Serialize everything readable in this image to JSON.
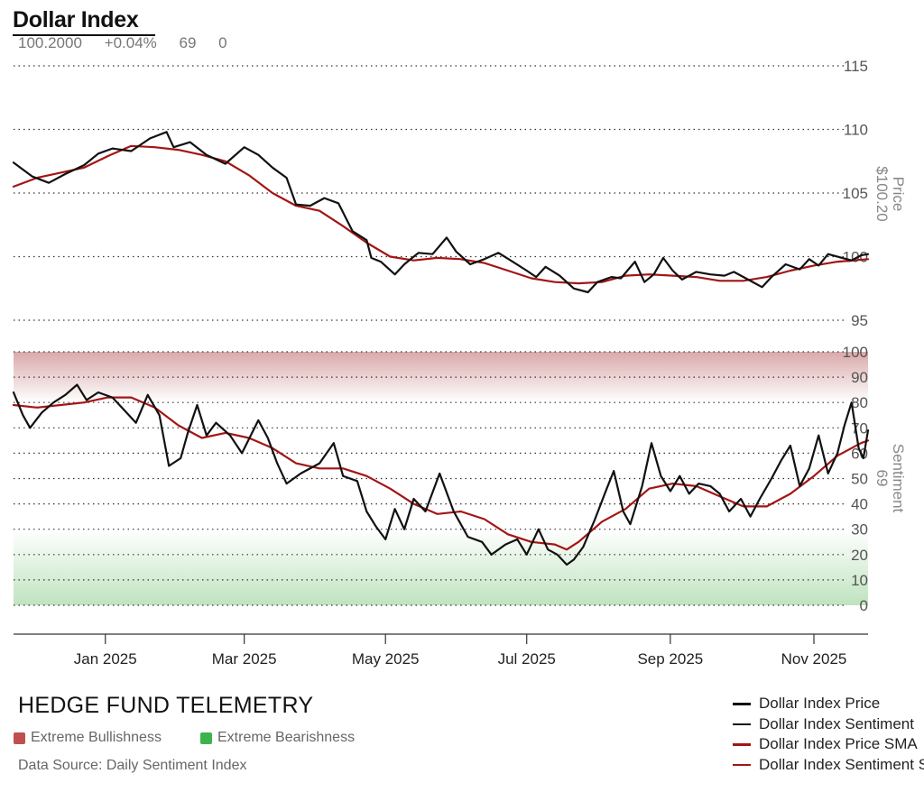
{
  "header": {
    "title": "Dollar Index",
    "stats": [
      "100.2000",
      "+0.04%",
      "69",
      "0"
    ]
  },
  "footer": {
    "brand": "HEDGE FUND TELEMETRY",
    "zones": [
      {
        "label": "Extreme Bullishness",
        "color": "#c0504d"
      },
      {
        "label": "Extreme Bearishness",
        "color": "#3cb44b"
      }
    ],
    "source": "Data Source: Daily Sentiment Index"
  },
  "colors": {
    "price": "#111111",
    "sma": "#a31515",
    "bull_zone": "#d9a9aa",
    "bear_zone": "#bfe3bf"
  },
  "chart_data": {
    "type": "line",
    "x_tick_labels": [
      "Jan 2025",
      "Mar 2025",
      "May 2025",
      "Jul 2025",
      "Sep 2025",
      "Nov 2025"
    ],
    "legend": [
      "Dollar Index Price",
      "Dollar Index Sentiment",
      "Dollar Index Price SMA",
      "Dollar Index Sentiment SMA"
    ],
    "price_panel": {
      "ylabel": [
        "Price",
        "$100.20"
      ],
      "ylim": [
        95,
        115
      ],
      "yticks": [
        95,
        100,
        105,
        110,
        115
      ],
      "series": [
        {
          "name": "Dollar Index Price",
          "color": "#111111",
          "values": [
            [
              0,
              107.4
            ],
            [
              8,
              106.3
            ],
            [
              15,
              105.8
            ],
            [
              22,
              106.5
            ],
            [
              30,
              107.2
            ],
            [
              36,
              108.1
            ],
            [
              42,
              108.5
            ],
            [
              50,
              108.3
            ],
            [
              58,
              109.3
            ],
            [
              65,
              109.8
            ],
            [
              68,
              108.6
            ],
            [
              75,
              109.0
            ],
            [
              82,
              108.0
            ],
            [
              90,
              107.3
            ],
            [
              98,
              108.6
            ],
            [
              104,
              108.0
            ],
            [
              110,
              107.0
            ],
            [
              116,
              106.2
            ],
            [
              120,
              104.1
            ],
            [
              126,
              104.0
            ],
            [
              132,
              104.6
            ],
            [
              138,
              104.2
            ],
            [
              144,
              102.0
            ],
            [
              150,
              101.3
            ],
            [
              152,
              99.9
            ],
            [
              156,
              99.6
            ],
            [
              162,
              98.6
            ],
            [
              166,
              99.4
            ],
            [
              172,
              100.3
            ],
            [
              178,
              100.2
            ],
            [
              184,
              101.5
            ],
            [
              188,
              100.4
            ],
            [
              194,
              99.4
            ],
            [
              200,
              99.8
            ],
            [
              206,
              100.3
            ],
            [
              212,
              99.6
            ],
            [
              218,
              98.9
            ],
            [
              222,
              98.4
            ],
            [
              226,
              99.2
            ],
            [
              232,
              98.5
            ],
            [
              238,
              97.5
            ],
            [
              244,
              97.2
            ],
            [
              248,
              98.0
            ],
            [
              254,
              98.4
            ],
            [
              258,
              98.3
            ],
            [
              264,
              99.6
            ],
            [
              268,
              98.0
            ],
            [
              272,
              98.6
            ],
            [
              276,
              99.9
            ],
            [
              280,
              98.9
            ],
            [
              284,
              98.2
            ],
            [
              290,
              98.8
            ],
            [
              296,
              98.6
            ],
            [
              302,
              98.5
            ],
            [
              306,
              98.8
            ],
            [
              312,
              98.2
            ],
            [
              318,
              97.6
            ],
            [
              322,
              98.4
            ],
            [
              328,
              99.4
            ],
            [
              334,
              99.0
            ],
            [
              338,
              99.8
            ],
            [
              342,
              99.3
            ],
            [
              346,
              100.2
            ],
            [
              352,
              99.9
            ],
            [
              356,
              99.7
            ],
            [
              360,
              100.1
            ],
            [
              363,
              100.2
            ]
          ]
        },
        {
          "name": "Dollar Index Price SMA",
          "color": "#a31515",
          "values": [
            [
              0,
              105.5
            ],
            [
              10,
              106.2
            ],
            [
              20,
              106.6
            ],
            [
              30,
              107.0
            ],
            [
              40,
              107.9
            ],
            [
              50,
              108.7
            ],
            [
              60,
              108.6
            ],
            [
              70,
              108.4
            ],
            [
              80,
              108.0
            ],
            [
              90,
              107.5
            ],
            [
              100,
              106.4
            ],
            [
              110,
              105.0
            ],
            [
              120,
              104.0
            ],
            [
              130,
              103.6
            ],
            [
              140,
              102.4
            ],
            [
              150,
              101.1
            ],
            [
              160,
              100.0
            ],
            [
              170,
              99.7
            ],
            [
              180,
              99.9
            ],
            [
              190,
              99.8
            ],
            [
              200,
              99.5
            ],
            [
              210,
              98.9
            ],
            [
              220,
              98.3
            ],
            [
              230,
              98.0
            ],
            [
              240,
              97.9
            ],
            [
              250,
              98.0
            ],
            [
              260,
              98.5
            ],
            [
              270,
              98.6
            ],
            [
              280,
              98.5
            ],
            [
              290,
              98.4
            ],
            [
              300,
              98.1
            ],
            [
              310,
              98.1
            ],
            [
              320,
              98.4
            ],
            [
              330,
              98.9
            ],
            [
              340,
              99.3
            ],
            [
              350,
              99.6
            ],
            [
              363,
              99.8
            ]
          ]
        }
      ]
    },
    "sentiment_panel": {
      "ylabel": [
        "Sentiment",
        "69"
      ],
      "ylim": [
        0,
        100
      ],
      "yticks": [
        0,
        10,
        20,
        30,
        40,
        50,
        60,
        70,
        80,
        90,
        100
      ],
      "zones": [
        {
          "name": "Extreme Bullishness",
          "range": [
            80,
            100
          ]
        },
        {
          "name": "Extreme Bearishness",
          "range": [
            0,
            30
          ]
        }
      ],
      "series": [
        {
          "name": "Dollar Index Sentiment",
          "color": "#111111",
          "values": [
            [
              0,
              84
            ],
            [
              4,
              75
            ],
            [
              7,
              70
            ],
            [
              12,
              76
            ],
            [
              17,
              80
            ],
            [
              22,
              83
            ],
            [
              27,
              87
            ],
            [
              31,
              81
            ],
            [
              36,
              84
            ],
            [
              42,
              82
            ],
            [
              46,
              78
            ],
            [
              52,
              72
            ],
            [
              57,
              83
            ],
            [
              62,
              75
            ],
            [
              66,
              55
            ],
            [
              71,
              58
            ],
            [
              74,
              68
            ],
            [
              78,
              79
            ],
            [
              82,
              67
            ],
            [
              86,
              72
            ],
            [
              92,
              67
            ],
            [
              97,
              60
            ],
            [
              104,
              73
            ],
            [
              108,
              66
            ],
            [
              112,
              56
            ],
            [
              116,
              48
            ],
            [
              122,
              52
            ],
            [
              130,
              56
            ],
            [
              136,
              64
            ],
            [
              140,
              51
            ],
            [
              146,
              49
            ],
            [
              150,
              37
            ],
            [
              154,
              31
            ],
            [
              158,
              26
            ],
            [
              162,
              38
            ],
            [
              166,
              30
            ],
            [
              170,
              42
            ],
            [
              175,
              37
            ],
            [
              181,
              52
            ],
            [
              187,
              37
            ],
            [
              193,
              27
            ],
            [
              199,
              25
            ],
            [
              203,
              20
            ],
            [
              209,
              24
            ],
            [
              214,
              26
            ],
            [
              218,
              20
            ],
            [
              223,
              30
            ],
            [
              227,
              22
            ],
            [
              231,
              20
            ],
            [
              235,
              16
            ],
            [
              238,
              18
            ],
            [
              242,
              23
            ],
            [
              247,
              34
            ],
            [
              252,
              46
            ],
            [
              255,
              53
            ],
            [
              259,
              37
            ],
            [
              262,
              32
            ],
            [
              267,
              47
            ],
            [
              271,
              64
            ],
            [
              275,
              51
            ],
            [
              279,
              45
            ],
            [
              283,
              51
            ],
            [
              287,
              44
            ],
            [
              291,
              48
            ],
            [
              296,
              47
            ],
            [
              300,
              44
            ],
            [
              304,
              37
            ],
            [
              309,
              42
            ],
            [
              313,
              35
            ],
            [
              317,
              42
            ],
            [
              322,
              50
            ],
            [
              326,
              57
            ],
            [
              330,
              63
            ],
            [
              334,
              47
            ],
            [
              338,
              54
            ],
            [
              342,
              67
            ],
            [
              346,
              52
            ],
            [
              350,
              60
            ],
            [
              353,
              71
            ],
            [
              356,
              80
            ],
            [
              359,
              62
            ],
            [
              361,
              58
            ],
            [
              363,
              69
            ]
          ]
        },
        {
          "name": "Dollar Index Sentiment SMA",
          "color": "#a31515",
          "values": [
            [
              0,
              79
            ],
            [
              10,
              78
            ],
            [
              20,
              79
            ],
            [
              30,
              80
            ],
            [
              40,
              82
            ],
            [
              50,
              82
            ],
            [
              60,
              78
            ],
            [
              70,
              71
            ],
            [
              80,
              66
            ],
            [
              90,
              68
            ],
            [
              100,
              66
            ],
            [
              110,
              62
            ],
            [
              120,
              56
            ],
            [
              130,
              54
            ],
            [
              140,
              54
            ],
            [
              150,
              51
            ],
            [
              160,
              46
            ],
            [
              170,
              40
            ],
            [
              180,
              36
            ],
            [
              190,
              37
            ],
            [
              200,
              34
            ],
            [
              210,
              28
            ],
            [
              220,
              25
            ],
            [
              230,
              24
            ],
            [
              235,
              22
            ],
            [
              240,
              25
            ],
            [
              250,
              33
            ],
            [
              260,
              38
            ],
            [
              270,
              46
            ],
            [
              280,
              48
            ],
            [
              290,
              47
            ],
            [
              300,
              43
            ],
            [
              310,
              39
            ],
            [
              320,
              39
            ],
            [
              330,
              44
            ],
            [
              340,
              51
            ],
            [
              350,
              59
            ],
            [
              360,
              64
            ],
            [
              363,
              65
            ]
          ]
        }
      ]
    }
  }
}
